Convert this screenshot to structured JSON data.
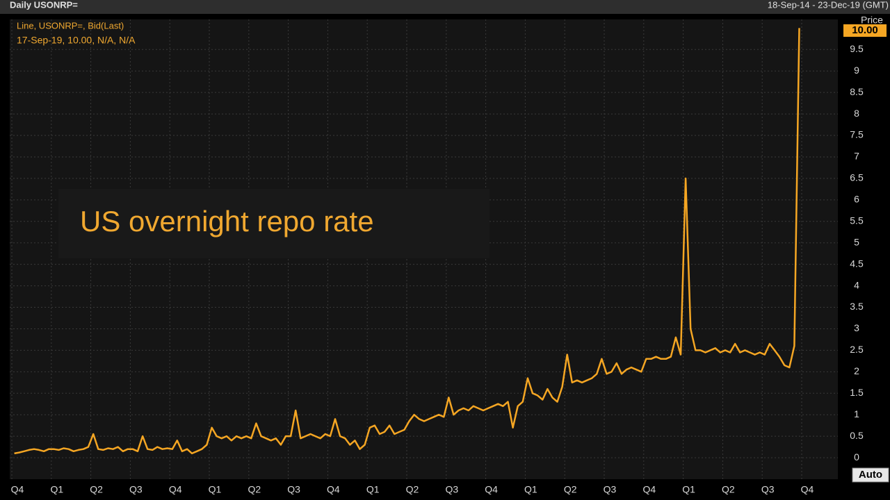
{
  "header": {
    "title": "Daily USONRP=",
    "range": "18-Sep-14 - 23-Dec-19 (GMT)"
  },
  "chart_data": {
    "type": "line",
    "annotation": "US overnight repo rate",
    "legend_line1": "Line, USONRP=, Bid(Last)",
    "legend_line2": "17-Sep-19, 10.00, N/A, N/A",
    "y_axis_label": "Price",
    "current_label": "10.00",
    "button": "Auto",
    "categories": [
      "Q4",
      "Q1",
      "Q2",
      "Q3",
      "Q4",
      "Q1",
      "Q2",
      "Q3",
      "Q4",
      "Q1",
      "Q2",
      "Q3",
      "Q4",
      "Q1",
      "Q2",
      "Q3",
      "Q4",
      "Q1",
      "Q2",
      "Q3",
      "Q4"
    ],
    "series": [
      {
        "name": "USONRP=",
        "color": "#f5a623",
        "values": [
          [
            0.1,
            0.12,
            0.15,
            0.18,
            0.2,
            0.18,
            0.15,
            0.2
          ],
          [
            0.2,
            0.18,
            0.22,
            0.2,
            0.15,
            0.18,
            0.2,
            0.25
          ],
          [
            0.55,
            0.2,
            0.18,
            0.22,
            0.2,
            0.25,
            0.15,
            0.2
          ],
          [
            0.2,
            0.15,
            0.5,
            0.2,
            0.18,
            0.25,
            0.2,
            0.22
          ],
          [
            0.2,
            0.4,
            0.15,
            0.2,
            0.1,
            0.15,
            0.2,
            0.3
          ],
          [
            0.7,
            0.5,
            0.45,
            0.5,
            0.4,
            0.5,
            0.45,
            0.5
          ],
          [
            0.45,
            0.8,
            0.5,
            0.45,
            0.4,
            0.45,
            0.3,
            0.5
          ],
          [
            0.5,
            1.1,
            0.45,
            0.5,
            0.55,
            0.5,
            0.45,
            0.55
          ],
          [
            0.5,
            0.9,
            0.5,
            0.45,
            0.3,
            0.4,
            0.2,
            0.3
          ],
          [
            0.7,
            0.75,
            0.55,
            0.6,
            0.75,
            0.55,
            0.6,
            0.65
          ],
          [
            0.85,
            1.0,
            0.9,
            0.85,
            0.9,
            0.95,
            1.0,
            0.95
          ],
          [
            1.4,
            1.0,
            1.1,
            1.15,
            1.1,
            1.2,
            1.15,
            1.1
          ],
          [
            1.15,
            1.2,
            1.25,
            1.2,
            1.3,
            0.7,
            1.2,
            1.3
          ],
          [
            1.85,
            1.5,
            1.45,
            1.35,
            1.6,
            1.4,
            1.3,
            1.65
          ],
          [
            2.4,
            1.75,
            1.8,
            1.75,
            1.8,
            1.85,
            1.95,
            2.3
          ],
          [
            1.95,
            2.0,
            2.2,
            1.95,
            2.05,
            2.1,
            2.05,
            2.0
          ],
          [
            2.3,
            2.3,
            2.35,
            2.3,
            2.3,
            2.35,
            2.8,
            2.4
          ],
          [
            6.5,
            3.0,
            2.5,
            2.5,
            2.45,
            2.5,
            2.55,
            2.45
          ],
          [
            2.5,
            2.45,
            2.65,
            2.45,
            2.5,
            2.45,
            2.4,
            2.45
          ],
          [
            2.4,
            2.65,
            2.5,
            2.35,
            2.15,
            2.1,
            2.6,
            10.0
          ],
          []
        ]
      }
    ],
    "ylim": [
      -0.5,
      10.2
    ],
    "yticks": [
      0,
      0.5,
      1,
      1.5,
      2,
      2.5,
      3,
      3.5,
      4,
      4.5,
      5,
      5.5,
      6,
      6.5,
      7,
      7.5,
      8,
      8.5,
      9,
      9.5
    ],
    "grid": true
  }
}
